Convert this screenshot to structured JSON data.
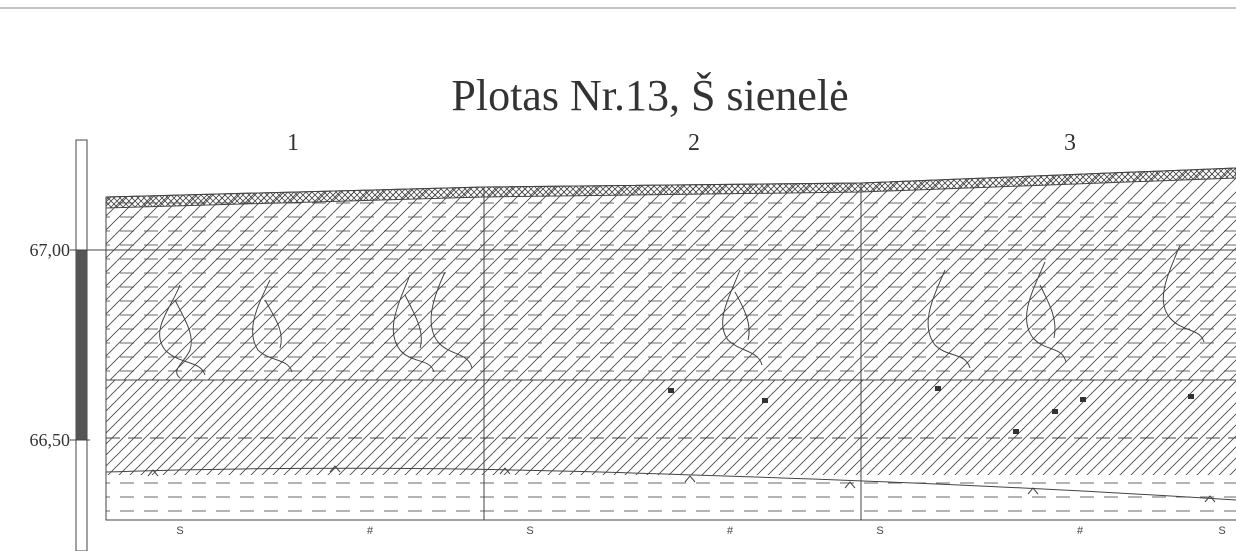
{
  "title": "Plotas Nr.13, Š sienelė",
  "columns": [
    "1",
    "2",
    "3"
  ],
  "elevations": {
    "upper": "67,00",
    "lower": "66,50"
  },
  "colors": {
    "line": "#444444",
    "scale_fill": "#555555",
    "text": "#333333",
    "inclusion": "#333333"
  },
  "symbols": [
    {
      "glyph": "S",
      "meaning": "bottom-marker"
    },
    {
      "glyph": "#",
      "meaning": "bottom-marker"
    },
    {
      "glyph": "S",
      "meaning": "bottom-marker"
    },
    {
      "glyph": "#",
      "meaning": "bottom-marker"
    },
    {
      "glyph": "S",
      "meaning": "bottom-marker"
    },
    {
      "glyph": "#",
      "meaning": "bottom-marker"
    },
    {
      "glyph": "S",
      "meaning": "bottom-marker"
    }
  ]
}
